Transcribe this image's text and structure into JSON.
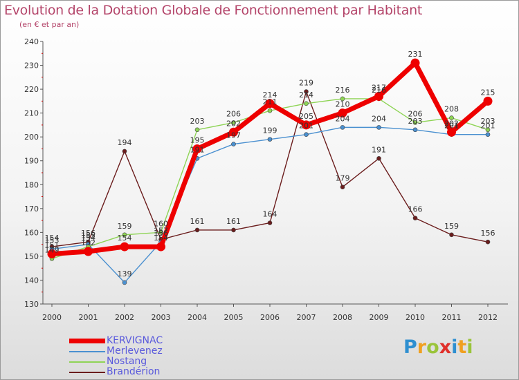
{
  "header": {
    "title": "Evolution de la Dotation Globale de Fonctionnement par Habitant",
    "subtitle": "(en € et par an)"
  },
  "chart_data": {
    "type": "line",
    "title": "Evolution de la Dotation Globale de Fonctionnement par Habitant",
    "subtitle": "(en € et par an)",
    "xlabel": "",
    "ylabel": "",
    "ylim": [
      130,
      240
    ],
    "yticks": [
      130,
      140,
      150,
      160,
      170,
      180,
      190,
      200,
      210,
      220,
      230,
      240
    ],
    "categories": [
      "2000",
      "2001",
      "2002",
      "2003",
      "2004",
      "2005",
      "2006",
      "2007",
      "2008",
      "2009",
      "2010",
      "2011",
      "2012"
    ],
    "series": [
      {
        "name": "KERVIGNAC",
        "color": "#ee0000",
        "values": [
          151,
          152,
          154,
          154,
          195,
          202,
          214,
          205,
          210,
          217,
          231,
          202,
          215
        ]
      },
      {
        "name": "Merlevenez",
        "color": "#4a90d0",
        "values": [
          153,
          155,
          139,
          156,
          191,
          197,
          199,
          201,
          204,
          204,
          203,
          201,
          201
        ]
      },
      {
        "name": "Nostang",
        "color": "#8ed455",
        "values": [
          149,
          154,
          159,
          160,
          203,
          206,
          211,
          214,
          216,
          216,
          206,
          208,
          203
        ]
      },
      {
        "name": "Brandérion",
        "color": "#6b1d1d",
        "values": [
          154,
          156,
          194,
          157,
          161,
          161,
          164,
          219,
          179,
          191,
          166,
          159,
          156
        ]
      }
    ],
    "legend_position": "bottom-left",
    "grid": false
  },
  "legend": {
    "items": [
      "KERVIGNAC",
      "Merlevenez",
      "Nostang",
      "Brandérion"
    ]
  },
  "logo": {
    "letters": [
      "P",
      "r",
      "o",
      "x",
      "i",
      "t",
      "i"
    ],
    "colors": [
      "#2e8fd0",
      "#f0a020",
      "#9ac43a",
      "#e0302a",
      "#2e8fd0",
      "#f0a020",
      "#9ac43a"
    ]
  }
}
